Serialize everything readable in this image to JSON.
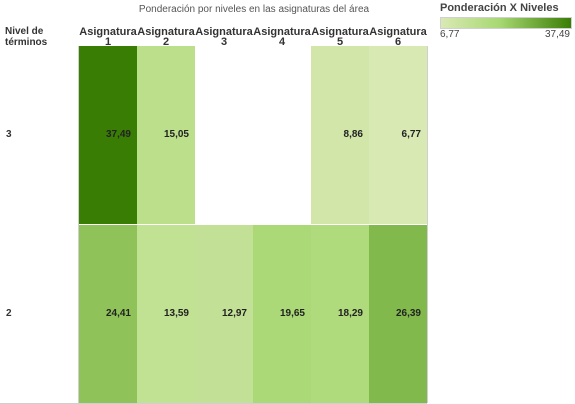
{
  "chart_data": {
    "type": "heatmap",
    "title": "Ponderación por niveles en las asignaturas del área",
    "row_header": "Nivel de\ntérminos",
    "columns": [
      {
        "line1": "Asignatura",
        "line2": "1"
      },
      {
        "line1": "Asignatura",
        "line2": "2"
      },
      {
        "line1": "Asignatura",
        "line2": "3"
      },
      {
        "line1": "Asignatura",
        "line2": "4"
      },
      {
        "line1": "Asignatura",
        "line2": "5"
      },
      {
        "line1": "Asignatura",
        "line2": "6"
      }
    ],
    "rows": [
      {
        "label": "3",
        "values": [
          37.49,
          15.05,
          null,
          null,
          8.86,
          6.77
        ],
        "display": [
          "37,49",
          "15,05",
          "",
          "",
          "8,86",
          "6,77"
        ]
      },
      {
        "label": "2",
        "values": [
          24.41,
          13.59,
          12.97,
          19.65,
          18.29,
          26.39
        ],
        "display": [
          "24,41",
          "13,59",
          "12,97",
          "19,65",
          "18,29",
          "26,39"
        ]
      }
    ],
    "legend": {
      "title": "Ponderación X Niveles",
      "min_label": "6,77",
      "max_label": "37,49",
      "min": 6.77,
      "max": 37.49,
      "color_low": "#d9e9b4",
      "color_high": "#3a7d05"
    }
  }
}
